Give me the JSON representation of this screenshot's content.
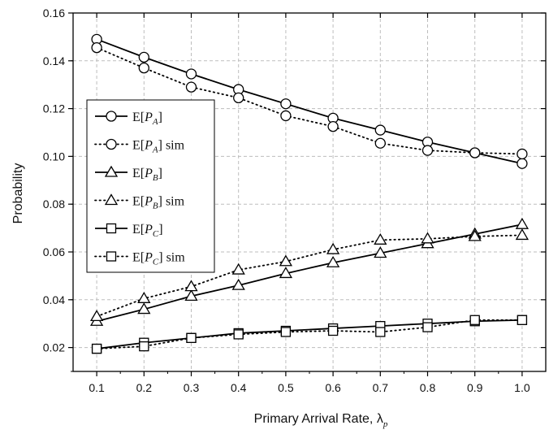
{
  "chart_data": {
    "type": "line",
    "xlabel": "Primary Arrival Rate, λ",
    "xlabel_subscript": "p",
    "ylabel": "Probability",
    "xlim": [
      0.05,
      1.05
    ],
    "ylim": [
      0.01,
      0.16
    ],
    "x": [
      0.1,
      0.2,
      0.3,
      0.4,
      0.5,
      0.6,
      0.7,
      0.8,
      0.9,
      1.0
    ],
    "x_tick_labels": [
      "0.1",
      "0.2",
      "0.3",
      "0.4",
      "0.5",
      "0.6",
      "0.7",
      "0.8",
      "0.9",
      "1.0"
    ],
    "y_ticks": [
      0.02,
      0.04,
      0.06,
      0.08,
      0.1,
      0.12,
      0.14,
      0.16
    ],
    "y_tick_labels": [
      "0.02",
      "0.04",
      "0.06",
      "0.08",
      "0.10",
      "0.12",
      "0.14",
      "0.16"
    ],
    "grid": true,
    "legend_position": "left",
    "series": [
      {
        "name": "E[P_A]",
        "legend_var": "P",
        "legend_sub": "A",
        "legend_suffix": "",
        "marker": "circle",
        "line": "solid",
        "values": [
          0.149,
          0.1415,
          0.1345,
          0.128,
          0.122,
          0.116,
          0.111,
          0.106,
          0.1015,
          0.097
        ]
      },
      {
        "name": "E[P_A] sim",
        "legend_var": "P",
        "legend_sub": "A",
        "legend_suffix": " sim",
        "marker": "circle",
        "line": "dotted",
        "values": [
          0.1455,
          0.137,
          0.129,
          0.1245,
          0.117,
          0.1125,
          0.1055,
          0.1025,
          0.1015,
          0.101
        ]
      },
      {
        "name": "E[P_B]",
        "legend_var": "P",
        "legend_sub": "B",
        "legend_suffix": "",
        "marker": "triangle",
        "line": "solid",
        "values": [
          0.031,
          0.036,
          0.0415,
          0.046,
          0.051,
          0.0555,
          0.0595,
          0.0635,
          0.0675,
          0.0715
        ]
      },
      {
        "name": "E[P_B] sim",
        "legend_var": "P",
        "legend_sub": "B",
        "legend_suffix": " sim",
        "marker": "triangle",
        "line": "dotted",
        "values": [
          0.033,
          0.0405,
          0.0455,
          0.0525,
          0.056,
          0.061,
          0.065,
          0.0655,
          0.0665,
          0.067
        ]
      },
      {
        "name": "E[P_C]",
        "legend_var": "P",
        "legend_sub": "C",
        "legend_suffix": "",
        "marker": "square",
        "line": "solid",
        "values": [
          0.0195,
          0.022,
          0.024,
          0.026,
          0.027,
          0.028,
          0.029,
          0.03,
          0.031,
          0.0315
        ]
      },
      {
        "name": "E[P_C] sim",
        "legend_var": "P",
        "legend_sub": "C",
        "legend_suffix": " sim",
        "marker": "square",
        "line": "dotted",
        "values": [
          0.0195,
          0.0205,
          0.024,
          0.0255,
          0.0265,
          0.027,
          0.0265,
          0.0285,
          0.0315,
          0.0315
        ]
      }
    ]
  }
}
